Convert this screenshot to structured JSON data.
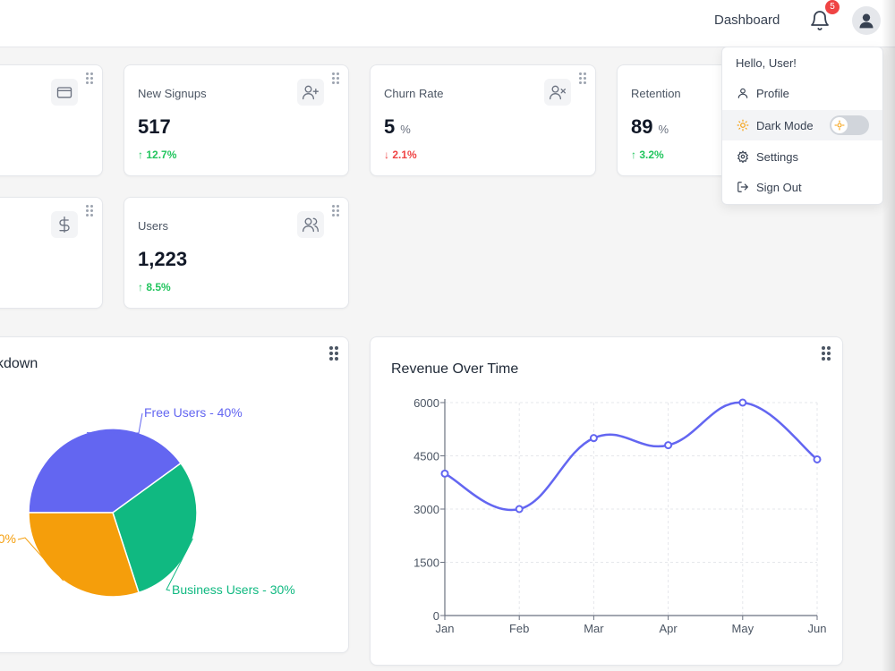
{
  "header": {
    "title": "Dashboard",
    "notification_count": "5"
  },
  "user_menu": {
    "greeting": "Hello, User!",
    "items": [
      {
        "label": "Profile",
        "icon": "user-icon"
      },
      {
        "label": "Dark Mode",
        "icon": "sun-icon",
        "toggle_on": false
      },
      {
        "label": "Settings",
        "icon": "gear-icon"
      },
      {
        "label": "Sign Out",
        "icon": "sign-out-icon"
      }
    ]
  },
  "stats": [
    {
      "label": "New Signups",
      "value": "517",
      "unit": "",
      "change": "12.7%",
      "direction": "up",
      "icon": "user-plus-icon"
    },
    {
      "label": "Churn Rate",
      "value": "5",
      "unit": "%",
      "change": "2.1%",
      "direction": "down",
      "icon": "user-x-icon"
    },
    {
      "label": "Retention",
      "value": "89",
      "unit": "%",
      "change": "3.2%",
      "direction": "up",
      "icon": "refresh-icon"
    },
    {
      "label": "Users",
      "value": "1,223",
      "unit": "",
      "change": "8.5%",
      "direction": "up",
      "icon": "users-icon"
    }
  ],
  "partial_cards": [
    {
      "icon": "credit-card-icon"
    },
    {
      "icon": "dollar-icon"
    }
  ],
  "pie_panel": {
    "title": "kdown"
  },
  "line_panel": {
    "title": "Revenue Over Time"
  },
  "colors": {
    "accent": "#6366f1",
    "free": "#6366f1",
    "business": "#10b981",
    "third": "#f59e0b",
    "up": "#22c55e",
    "down": "#ef4444"
  },
  "chart_data": [
    {
      "type": "pie",
      "title": "kdown",
      "slices": [
        {
          "label": "Free Users - 40%",
          "value": 40,
          "color": "#6366f1"
        },
        {
          "label": "Business Users - 30%",
          "value": 30,
          "color": "#10b981"
        },
        {
          "label": "0%",
          "value": 30,
          "color": "#f59e0b"
        }
      ]
    },
    {
      "type": "line",
      "title": "Revenue Over Time",
      "categories": [
        "Jan",
        "Feb",
        "Mar",
        "Apr",
        "May",
        "Jun"
      ],
      "series": [
        {
          "values": [
            4000,
            3000,
            5000,
            4800,
            6000,
            4400
          ],
          "color": "#6366f1"
        }
      ],
      "ylim": [
        0,
        6000
      ],
      "yticks": [
        0,
        1500,
        3000,
        4500,
        6000
      ],
      "grid": true,
      "smooth": true
    }
  ]
}
